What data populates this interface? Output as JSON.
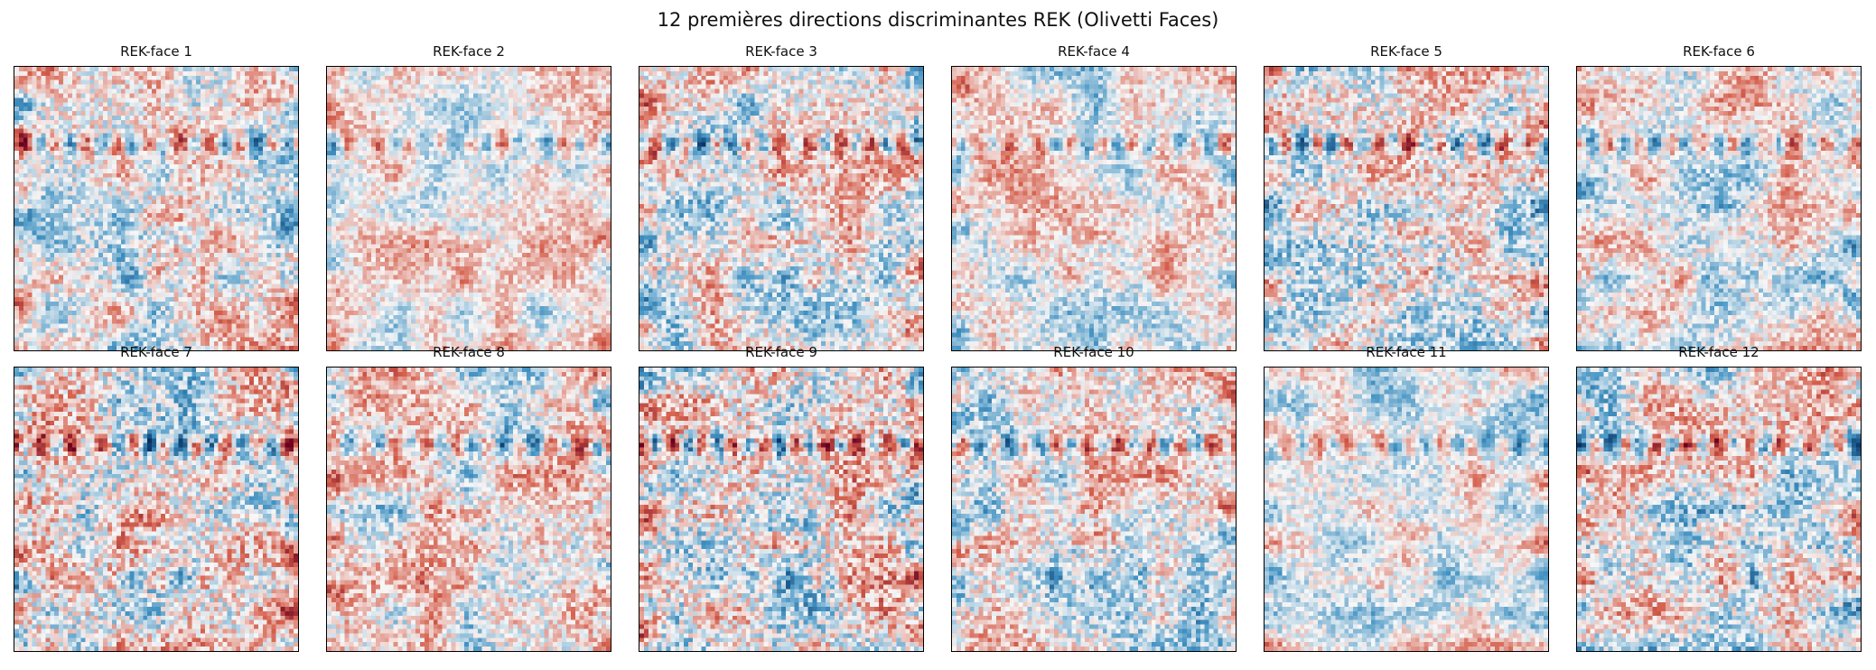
{
  "title": "12 premières directions discriminantes REK (Olivetti Faces)",
  "colormap": {
    "name": "RdBu_r",
    "negative": "#053061",
    "mid_neg": "#4393c3",
    "neutral": "#f7f7f7",
    "mid_pos": "#d6604d",
    "positive": "#67001f"
  },
  "chart_data": {
    "type": "heatmap",
    "title": "12 premières directions discriminantes REK (Olivetti Faces)",
    "layout": "2 rows x 6 columns",
    "image_resolution": "64x64",
    "axes_ticks": "none",
    "panels": [
      {
        "label": "REK-face 1"
      },
      {
        "label": "REK-face 2"
      },
      {
        "label": "REK-face 3"
      },
      {
        "label": "REK-face 4"
      },
      {
        "label": "REK-face 5"
      },
      {
        "label": "REK-face 6"
      },
      {
        "label": "REK-face 7"
      },
      {
        "label": "REK-face 8"
      },
      {
        "label": "REK-face 9"
      },
      {
        "label": "REK-face 10"
      },
      {
        "label": "REK-face 11"
      },
      {
        "label": "REK-face 12"
      }
    ]
  }
}
